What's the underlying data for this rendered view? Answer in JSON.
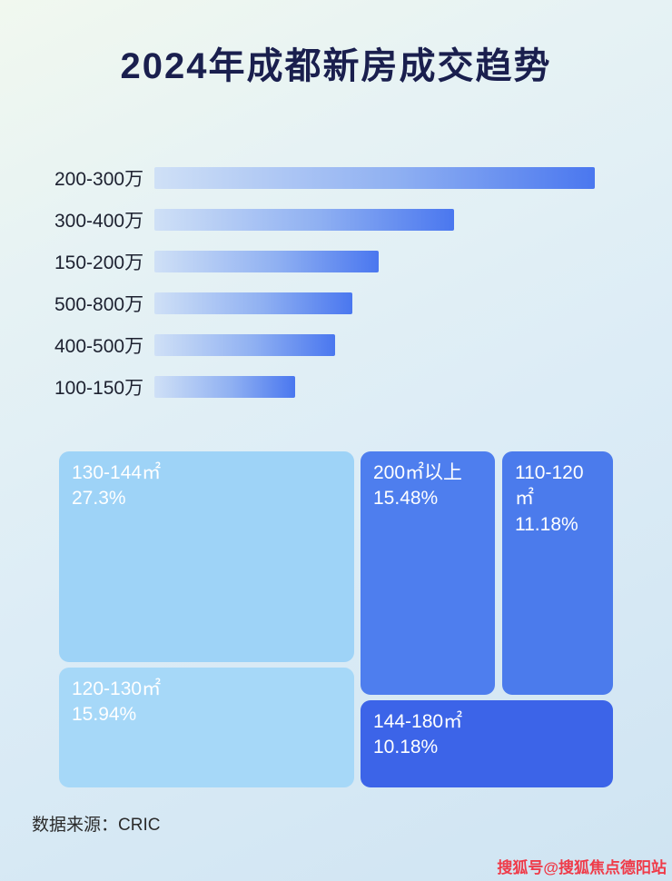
{
  "title": "2024年成都新房成交趋势",
  "chart_data": [
    {
      "type": "bar",
      "orientation": "horizontal",
      "title": "2024年成都新房成交趋势",
      "categories": [
        "200-300万",
        "300-400万",
        "150-200万",
        "500-800万",
        "400-500万",
        "100-150万"
      ],
      "values": [
        100,
        68,
        51,
        45,
        41,
        32
      ],
      "values_note": "relative bar lengths as % of longest bar; no numeric data labels shown in image",
      "bar_gradient": [
        "#cfe0f6",
        "#4a77ef"
      ],
      "grid": false,
      "legend": "none"
    },
    {
      "type": "treemap",
      "items": [
        {
          "label": "130-144㎡",
          "value": "27.3%",
          "color": "#9ed3f7"
        },
        {
          "label": "200㎡以上",
          "value": "15.48%",
          "color": "#4e7eee"
        },
        {
          "label": "110-120㎡",
          "value": "11.18%",
          "color": "#4b7bec"
        },
        {
          "label": "120-130㎡",
          "value": "15.94%",
          "color": "#a6d8f8"
        },
        {
          "label": "144-180㎡",
          "value": "10.18%",
          "color": "#3c64e8"
        }
      ]
    }
  ],
  "footer": {
    "source": "数据来源：CRIC"
  },
  "watermark": {
    "text": "搜狐号@搜狐焦点德阳站",
    "color": "#ef3b49"
  }
}
